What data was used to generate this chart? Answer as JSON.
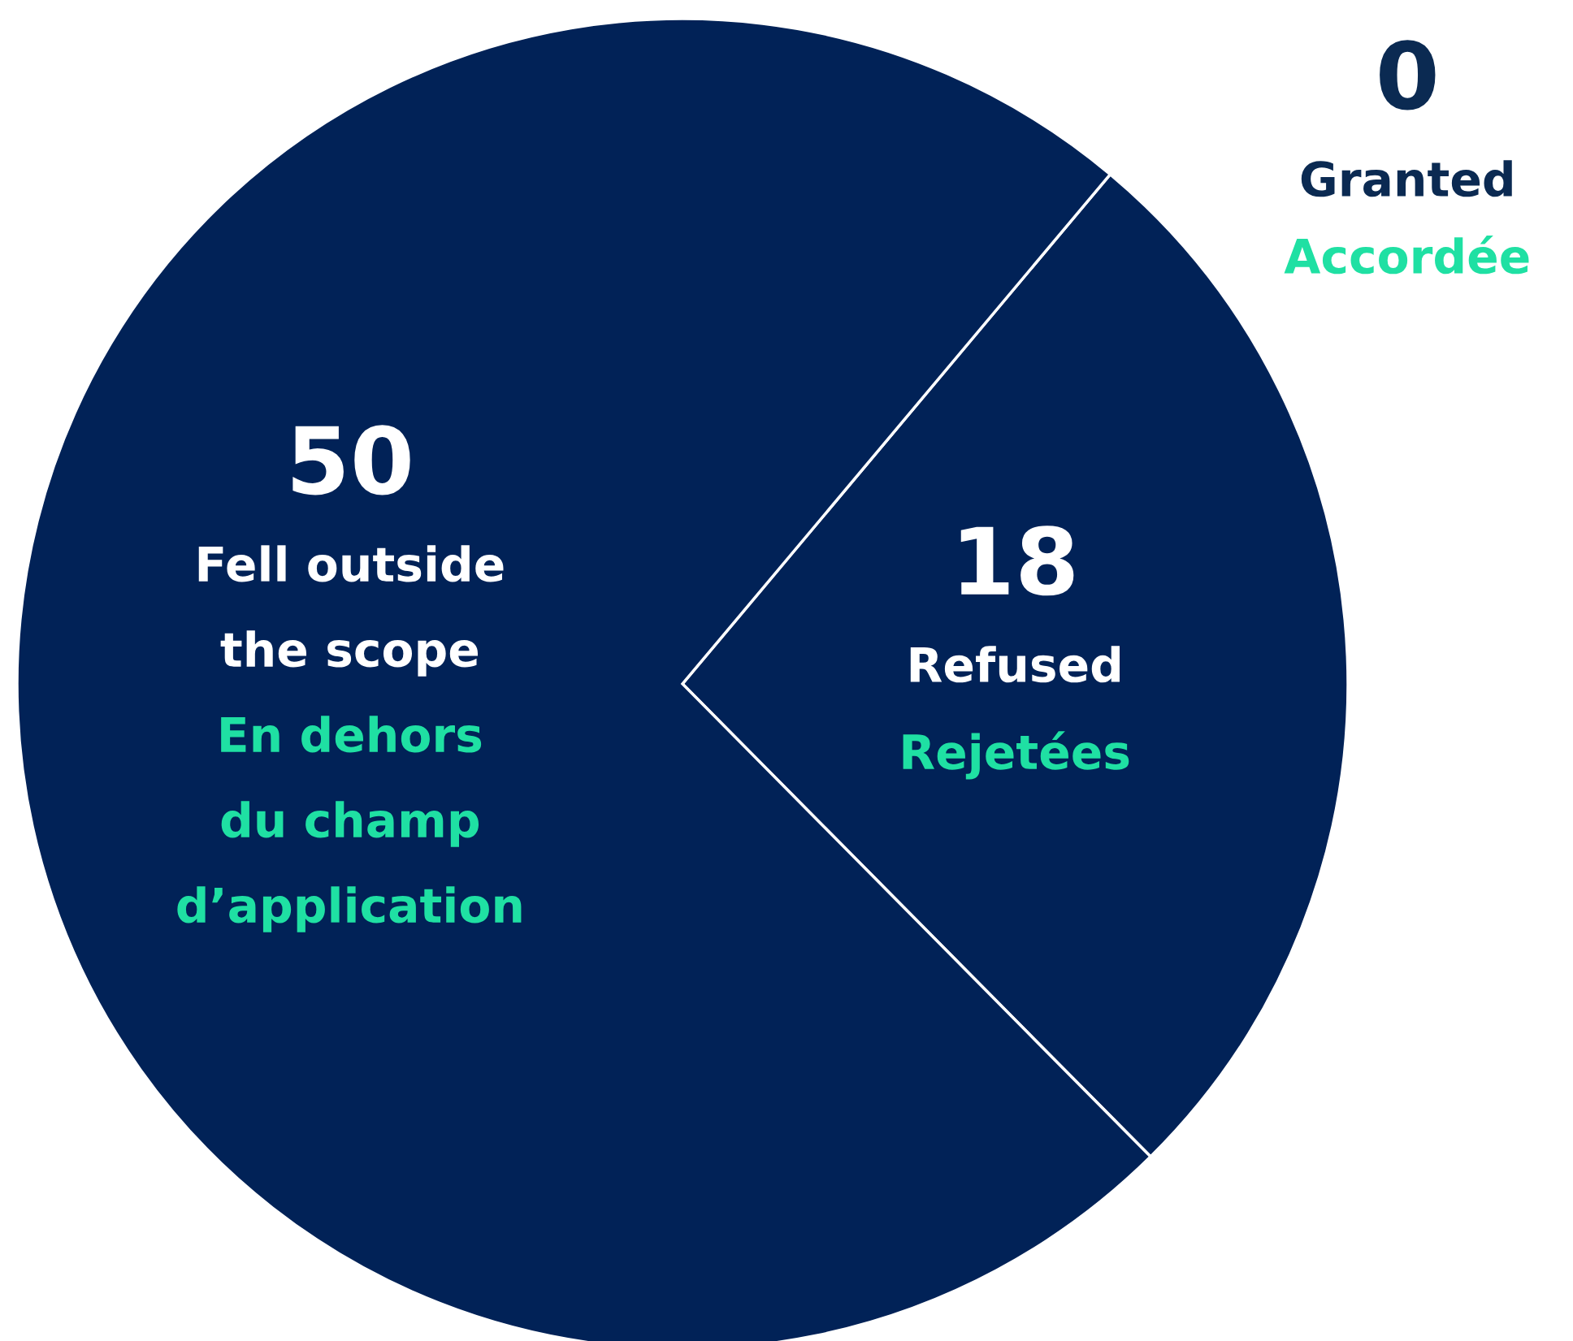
{
  "chart_data": {
    "type": "pie",
    "categories": [
      "Granted",
      "Refused",
      "Fell outside\nthe scope"
    ],
    "values": [
      0,
      18,
      50
    ],
    "colors": [
      "#012257",
      "#012257",
      "#012257"
    ],
    "annotations": [
      "Accordée",
      "Rejetées",
      "En dehors\ndu champ\nd’application"
    ],
    "value_labels": [
      "0",
      "18",
      "50"
    ],
    "data_labels": true
  }
}
